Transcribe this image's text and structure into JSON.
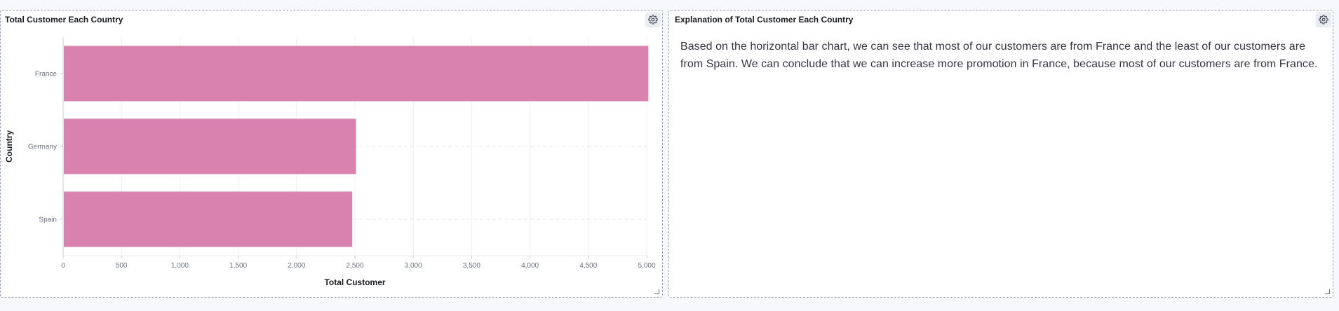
{
  "left_panel": {
    "title": "Total Customer Each Country"
  },
  "right_panel": {
    "title": "Explanation of Total Customer Each Country",
    "body": "Based on the horizontal bar chart, we can see that most of our customers are from France and the least of our customers are from Spain. We can conclude that we can increase more promotion in France, because most of our customers are from France."
  },
  "icons": {
    "panel_options": "gear-icon",
    "resize": "resize-handle-icon"
  },
  "chart_data": {
    "type": "bar",
    "orientation": "horizontal",
    "categories": [
      "France",
      "Germany",
      "Spain"
    ],
    "values": [
      5014,
      2509,
      2477
    ],
    "xlabel": "Total Customer",
    "ylabel": "Country",
    "xlim": [
      0,
      5000
    ],
    "xticks": [
      "0",
      "500",
      "1,000",
      "1,500",
      "2,000",
      "2,500",
      "3,000",
      "3,500",
      "4,000",
      "4,500",
      "5,000"
    ],
    "bar_color": "#d982b0",
    "grid": true
  }
}
